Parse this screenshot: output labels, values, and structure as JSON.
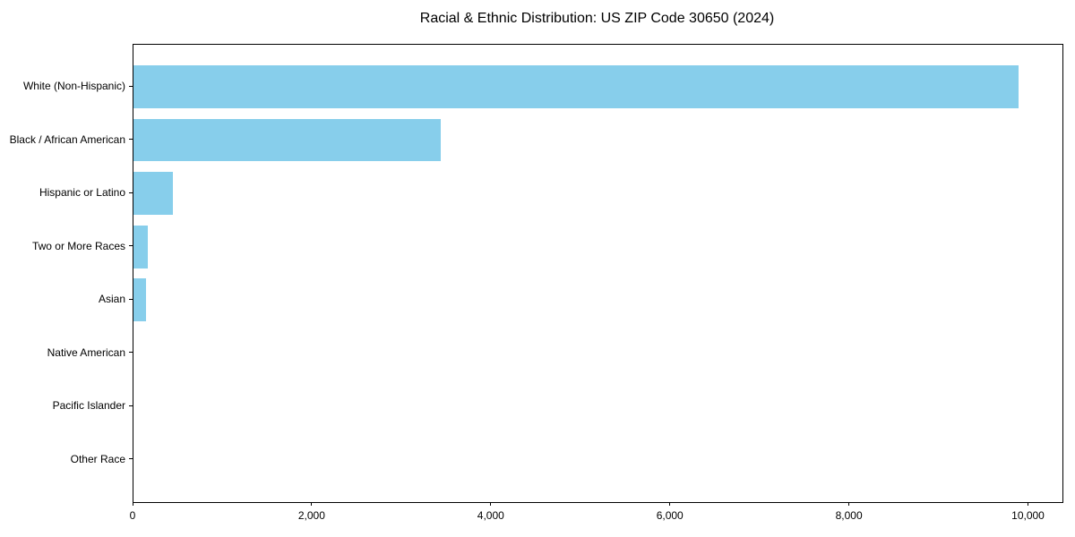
{
  "title": "Racial & Ethnic Distribution: US ZIP Code 30650 (2024)",
  "chart_data": {
    "type": "bar",
    "orientation": "horizontal",
    "title": "Racial & Ethnic Distribution: US ZIP Code 30650 (2024)",
    "categories": [
      "White (Non-Hispanic)",
      "Black / African American",
      "Hispanic or Latino",
      "Two or More Races",
      "Asian",
      "Native American",
      "Pacific Islander",
      "Other Race"
    ],
    "values": [
      9880,
      3430,
      440,
      160,
      140,
      0,
      0,
      0
    ],
    "xlabel": "",
    "ylabel": "",
    "xlim": [
      0,
      10375
    ],
    "x_ticks": [
      0,
      2000,
      4000,
      6000,
      8000,
      10000
    ],
    "x_tick_labels": [
      "0",
      "2,000",
      "4,000",
      "6,000",
      "8,000",
      "10,000"
    ],
    "bar_color": "#87CEEB",
    "axis_color": "#000000",
    "text_color": "#000000",
    "background_color": "#ffffff",
    "grid": false,
    "legend": null
  }
}
